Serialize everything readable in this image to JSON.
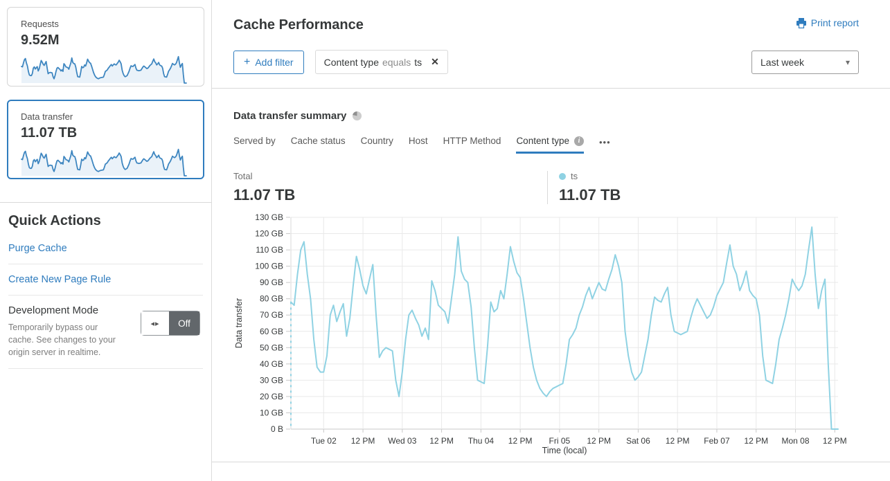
{
  "colors": {
    "accent": "#2f7cbe",
    "spark_line": "#3e86c0",
    "spark_fill": "#eaf2f9",
    "chart_line": "#8fd2e3",
    "grid": "#e9e9e9"
  },
  "sidebar": {
    "cards": [
      {
        "label": "Requests",
        "value": "9.52M",
        "selected": false
      },
      {
        "label": "Data transfer",
        "value": "11.07 TB",
        "selected": true
      }
    ],
    "quick_actions": {
      "title": "Quick Actions",
      "links": [
        "Purge Cache",
        "Create New Page Rule"
      ],
      "dev_mode": {
        "title": "Development Mode",
        "description": "Temporarily bypass our cache. See changes to your origin server in realtime.",
        "toggle_state": "Off",
        "toggle_arrows_glyph": "◂▸"
      }
    }
  },
  "header": {
    "title": "Cache Performance",
    "print_label": "Print report"
  },
  "filters": {
    "add_label": "Add filter",
    "plus_glyph": "+",
    "chip": {
      "field": "Content type",
      "operator": "equals",
      "value": "ts",
      "close_glyph": "✕"
    },
    "range_selected": "Last week",
    "caret_glyph": "▾"
  },
  "summary": {
    "title": "Data transfer summary",
    "tabs": [
      "Served by",
      "Cache status",
      "Country",
      "Host",
      "HTTP Method",
      "Content type"
    ],
    "active_tab": "Content type",
    "info_glyph": "i",
    "more_glyph": "•••",
    "total_label": "Total",
    "total_value": "11.07 TB",
    "legend": {
      "name": "ts",
      "value": "11.07 TB",
      "color": "#8fd2e3"
    }
  },
  "chart_data": {
    "type": "line",
    "title": "Data transfer summary",
    "xlabel": "Time (local)",
    "ylabel": "Data transfer",
    "unit": "GB per hour",
    "ylim": [
      0,
      130
    ],
    "grid": true,
    "y_ticks": [
      "0 B",
      "10 GB",
      "20 GB",
      "30 GB",
      "40 GB",
      "50 GB",
      "60 GB",
      "70 GB",
      "80 GB",
      "90 GB",
      "100 GB",
      "110 GB",
      "120 GB",
      "130 GB"
    ],
    "x_tick_hours": [
      10,
      22,
      34,
      46,
      58,
      70,
      82,
      94,
      106,
      118,
      130,
      142,
      154,
      166
    ],
    "x_tick_labels": [
      "Tue 02",
      "12 PM",
      "Wed 03",
      "12 PM",
      "Thu 04",
      "12 PM",
      "Fri 05",
      "12 PM",
      "Sat 06",
      "12 PM",
      "Feb 07",
      "12 PM",
      "Mon 08",
      "12 PM"
    ],
    "start_marker_dashed": true,
    "series": [
      {
        "name": "ts",
        "color": "#8fd2e3",
        "values": [
          78,
          76,
          95,
          110,
          115,
          95,
          80,
          55,
          38,
          35,
          35,
          45,
          70,
          76,
          66,
          72,
          77,
          57,
          68,
          88,
          106,
          98,
          88,
          83,
          92,
          101,
          70,
          44,
          48,
          50,
          49,
          48,
          30,
          20,
          35,
          55,
          70,
          73,
          68,
          64,
          57,
          62,
          55,
          91,
          85,
          76,
          74,
          72,
          65,
          80,
          95,
          118,
          97,
          92,
          90,
          75,
          50,
          30,
          29,
          28,
          50,
          78,
          72,
          74,
          85,
          80,
          95,
          112,
          103,
          96,
          93,
          80,
          65,
          50,
          38,
          30,
          25,
          22,
          20,
          23,
          25,
          26,
          27,
          28,
          40,
          55,
          58,
          62,
          70,
          75,
          82,
          87,
          80,
          85,
          90,
          86,
          85,
          92,
          98,
          107,
          100,
          90,
          60,
          45,
          35,
          30,
          32,
          35,
          45,
          55,
          70,
          81,
          79,
          78,
          83,
          87,
          70,
          60,
          59,
          58,
          59,
          60,
          68,
          75,
          80,
          76,
          72,
          68,
          70,
          75,
          82,
          86,
          90,
          102,
          113,
          100,
          95,
          85,
          90,
          97,
          85,
          82,
          80,
          70,
          45,
          30,
          29,
          28,
          40,
          55,
          62,
          70,
          80,
          92,
          88,
          85,
          88,
          95,
          110,
          124,
          95,
          74,
          85,
          92,
          40,
          0,
          0,
          0
        ]
      }
    ]
  }
}
